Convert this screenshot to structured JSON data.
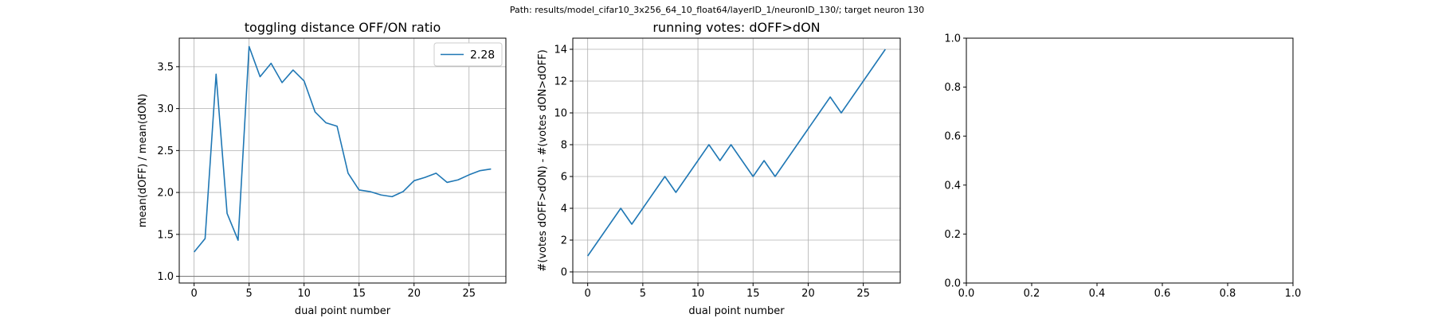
{
  "suptitle": "Path: results/model_cifar10_3x256_64_10_float64/layerID_1/neuronID_130/; target neuron 130",
  "colors": {
    "line": "#1f77b4",
    "grid": "#b0b0b0",
    "ref": "#808080"
  },
  "chart_data": [
    {
      "type": "line",
      "title": "toggling distance OFF/ON ratio",
      "xlabel": "dual point number",
      "ylabel": "mean(dOFF) / mean(dON)",
      "xlim": [
        -1.35,
        28.35
      ],
      "ylim": [
        0.92,
        3.84
      ],
      "xticks": [
        0,
        5,
        10,
        15,
        20,
        25
      ],
      "yticks": [
        1.0,
        1.5,
        2.0,
        2.5,
        3.0,
        3.5
      ],
      "ytick_labels": [
        "1.0",
        "1.5",
        "2.0",
        "2.5",
        "3.0",
        "3.5"
      ],
      "grid": true,
      "reference_line": 1.0,
      "legend": {
        "position": "top-right",
        "entries": [
          "2.28"
        ]
      },
      "series": [
        {
          "name": "2.28",
          "x": [
            0,
            1,
            2,
            3,
            4,
            5,
            6,
            7,
            8,
            9,
            10,
            11,
            12,
            13,
            14,
            15,
            16,
            17,
            18,
            19,
            20,
            21,
            22,
            23,
            24,
            25,
            26,
            27
          ],
          "y": [
            1.29,
            1.45,
            3.41,
            1.75,
            1.43,
            3.74,
            3.38,
            3.54,
            3.31,
            3.46,
            3.33,
            2.96,
            2.83,
            2.79,
            2.23,
            2.03,
            2.01,
            1.97,
            1.95,
            2.01,
            2.14,
            2.18,
            2.23,
            2.12,
            2.15,
            2.21,
            2.26,
            2.28
          ]
        }
      ]
    },
    {
      "type": "line",
      "title": "running votes: dOFF>dON",
      "xlabel": "dual point number",
      "ylabel": "#(votes dOFF>dON) - #(votes dON>dOFF)",
      "xlim": [
        -1.35,
        28.35
      ],
      "ylim": [
        -0.7,
        14.7
      ],
      "xticks": [
        0,
        5,
        10,
        15,
        20,
        25
      ],
      "yticks": [
        0,
        2,
        4,
        6,
        8,
        10,
        12,
        14
      ],
      "ytick_labels": [
        "0",
        "2",
        "4",
        "6",
        "8",
        "10",
        "12",
        "14"
      ],
      "grid": true,
      "reference_line": 0,
      "series": [
        {
          "x": [
            0,
            1,
            2,
            3,
            4,
            5,
            6,
            7,
            8,
            9,
            10,
            11,
            12,
            13,
            14,
            15,
            16,
            17,
            18,
            19,
            20,
            21,
            22,
            23,
            24,
            25,
            26,
            27
          ],
          "y": [
            1,
            2,
            3,
            4,
            3,
            4,
            5,
            6,
            5,
            6,
            7,
            8,
            7,
            8,
            7,
            6,
            7,
            6,
            7,
            8,
            9,
            10,
            11,
            10,
            11,
            12,
            13,
            14
          ]
        }
      ]
    },
    {
      "type": "line",
      "title": "",
      "xlabel": "",
      "ylabel": "",
      "xlim": [
        0,
        1
      ],
      "ylim": [
        0,
        1
      ],
      "xticks": [
        0,
        0.2,
        0.4,
        0.6,
        0.8,
        1.0
      ],
      "xtick_labels": [
        "0.0",
        "0.2",
        "0.4",
        "0.6",
        "0.8",
        "1.0"
      ],
      "yticks": [
        0,
        0.2,
        0.4,
        0.6,
        0.8,
        1.0
      ],
      "ytick_labels": [
        "0.0",
        "0.2",
        "0.4",
        "0.6",
        "0.8",
        "1.0"
      ],
      "grid": false,
      "series": []
    }
  ]
}
